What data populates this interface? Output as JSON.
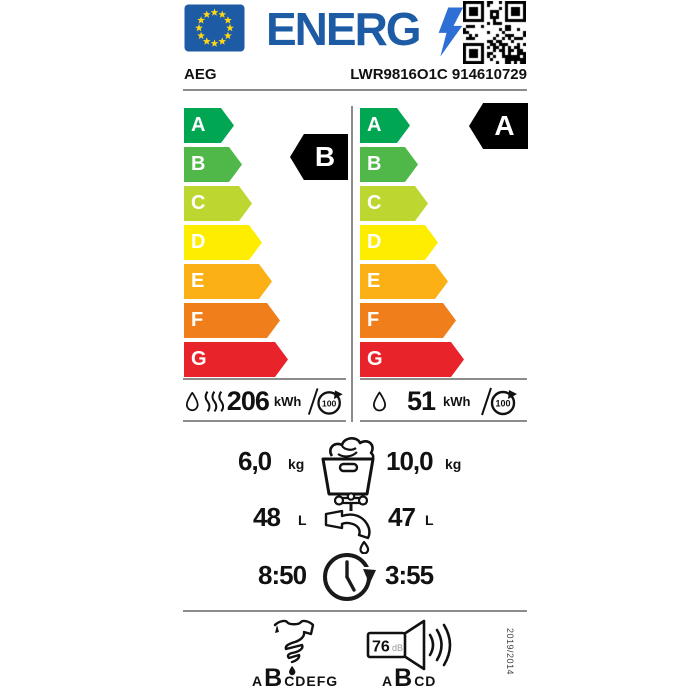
{
  "header": {
    "logo_text": "ENERG",
    "brand": "AEG",
    "model": "LWR9816O1C 914610729"
  },
  "colors": {
    "eu_blue": "#1d5ba5",
    "bolt_blue": "#2e6fd6",
    "star_yellow": "#ffd617",
    "line_gray": "#8c8c8c",
    "black": "#000000",
    "class_colors": {
      "A": "#00a651",
      "B": "#50b848",
      "C": "#bdd630",
      "D": "#ffed00",
      "E": "#fbb116",
      "F": "#f07e1b",
      "G": "#e8232a"
    }
  },
  "scales": {
    "left": {
      "classes": [
        "A",
        "B",
        "C",
        "D",
        "E",
        "F",
        "G"
      ],
      "rating": "B"
    },
    "right": {
      "classes": [
        "A",
        "B",
        "C",
        "D",
        "E",
        "F",
        "G"
      ],
      "rating": "A"
    }
  },
  "consumption": {
    "wash_dry": {
      "value": "206",
      "unit": "kWh",
      "per": "100"
    },
    "wash": {
      "value": "51",
      "unit": "kWh",
      "per": "100"
    }
  },
  "capacity": {
    "wash_dry_value": "6,0",
    "wash_dry_unit": "kg",
    "wash_value": "10,0",
    "wash_unit": "kg"
  },
  "water": {
    "wash_dry_value": "48",
    "wash_dry_unit": "L",
    "wash_value": "47",
    "wash_unit": "L"
  },
  "duration": {
    "wash_dry_value": "8:50",
    "wash_value": "3:55"
  },
  "spin_class": {
    "before": "A",
    "current": "B",
    "after": "CDEFG"
  },
  "noise": {
    "value": "76",
    "unit": "dB",
    "before": "A",
    "current": "B",
    "after": "CD"
  },
  "regulation": "2019/2014",
  "icons": {
    "eu-flag-icon": "blue rectangle with 12 yellow stars",
    "lightning-bolt-icon": "blue bolt",
    "qr-code-icon": "qr code",
    "droplet-icon": "water drop outline",
    "heat-waves-icon": "three steam waves",
    "per-100-cycles-icon": "circular arrow with 100",
    "laundry-basket-icon": "basket with laundry",
    "tap-icon": "faucet with drop",
    "clock-icon": "clock with clockwise arrow",
    "wrung-shirt-icon": "twisted shirt with drop",
    "speaker-icon": "loudspeaker with sound waves"
  }
}
